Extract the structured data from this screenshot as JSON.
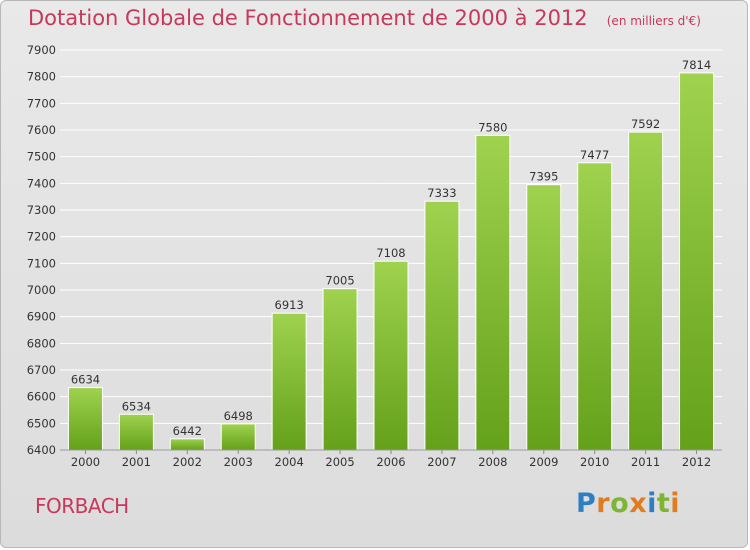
{
  "header": {
    "title": "Dotation Globale de Fonctionnement de 2000 à 2012",
    "unit": "(en milliers d'€)"
  },
  "footer": {
    "commune": "FORBACH",
    "brand": "Proxiti",
    "brand_letters": [
      {
        "ch": "P",
        "color": "#2e7fc1"
      },
      {
        "ch": "r",
        "color": "#e07c1e"
      },
      {
        "ch": "o",
        "color": "#7cb633"
      },
      {
        "ch": "x",
        "color": "#e07c1e"
      },
      {
        "ch": "i",
        "color": "#2e7fc1"
      },
      {
        "ch": "t",
        "color": "#7cb633"
      },
      {
        "ch": "i",
        "color": "#e07c1e"
      }
    ]
  },
  "colors": {
    "bar_top": "#9fd24f",
    "bar_bottom": "#64a11a",
    "accent": "#c8385a",
    "grid": "#ffffff",
    "axis_text": "#333333"
  },
  "chart_data": {
    "type": "bar",
    "title": "Dotation Globale de Fonctionnement de 2000 à 2012",
    "subtitle": "(en milliers d'€)",
    "categories": [
      "2000",
      "2001",
      "2002",
      "2003",
      "2004",
      "2005",
      "2006",
      "2007",
      "2008",
      "2009",
      "2010",
      "2011",
      "2012"
    ],
    "values": [
      6634,
      6534,
      6442,
      6498,
      6913,
      7005,
      7108,
      7333,
      7580,
      7395,
      7477,
      7592,
      7814
    ],
    "ylim": [
      6400,
      7900
    ],
    "yticks": [
      6400,
      6500,
      6600,
      6700,
      6800,
      6900,
      7000,
      7100,
      7200,
      7300,
      7400,
      7500,
      7600,
      7700,
      7800,
      7900
    ],
    "grid": true,
    "data_labels": true
  }
}
